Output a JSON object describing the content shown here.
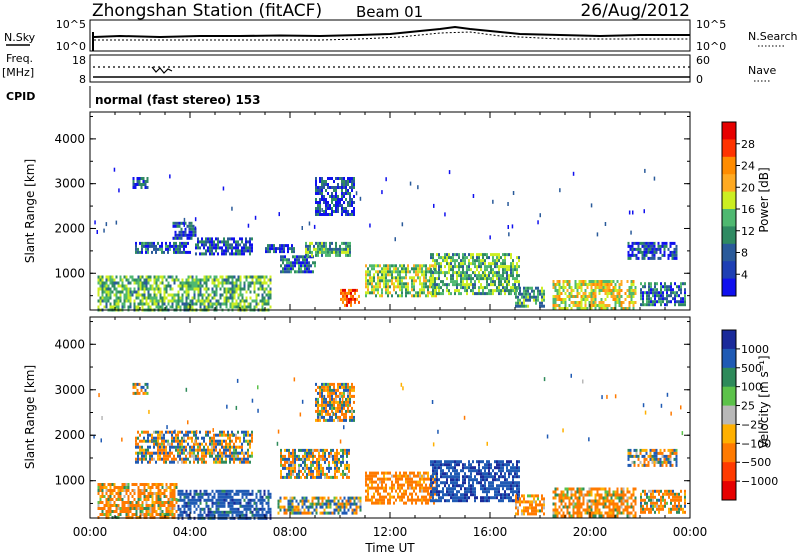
{
  "header": {
    "station": "Zhongshan Station (fitACF)",
    "beam": "Beam 01",
    "date": "26/Aug/2012"
  },
  "panels": {
    "nsky": {
      "left_label": "N.Sky",
      "right_label": "N.Search",
      "left_ticks": [
        "10^5",
        "10^0"
      ],
      "right_ticks": [
        "10^5",
        "10^0"
      ]
    },
    "freq": {
      "left_label_1": "Freq.",
      "left_label_2": "[MHz]",
      "right_label": "Nave",
      "left_ticks": [
        "18",
        "8"
      ],
      "right_ticks": [
        "60",
        "0"
      ]
    },
    "cpid": {
      "left_label": "CPID",
      "text": "normal (fast stereo) 153"
    },
    "power": {
      "colorbar_label": "Power [dB]",
      "colorbar_ticks": [
        "28",
        "24",
        "20",
        "16",
        "12",
        "8",
        "4"
      ],
      "colorbar_colors": [
        "#e60000",
        "#ff3300",
        "#ff8c00",
        "#ffaa22",
        "#ccee22",
        "#4fb870",
        "#2f8a62",
        "#2a5a9a",
        "#1e3fb4",
        "#1010ee"
      ]
    },
    "velocity": {
      "colorbar_label": "Velocity [m s⁻¹]",
      "colorbar_ticks": [
        "1000",
        "500",
        "100",
        "25",
        "−25",
        "−100",
        "−500",
        "−1000"
      ],
      "colorbar_colors": [
        "#1a2a9a",
        "#1f5ab4",
        "#2e8a5a",
        "#5cc24a",
        "#b8b8b8",
        "#ffb000",
        "#ff7a00",
        "#ff3a00",
        "#e60000"
      ]
    }
  },
  "axes": {
    "ylabel": "Slant Range [km]",
    "xlabel": "Time UT",
    "yticks": [
      "1000",
      "2000",
      "3000",
      "4000"
    ],
    "xticks": [
      "00:00",
      "04:00",
      "08:00",
      "12:00",
      "16:00",
      "20:00",
      "00:00"
    ]
  },
  "chart_data": [
    {
      "type": "heatmap",
      "title": "Power",
      "xlabel": "Time UT",
      "ylabel": "Slant Range [km]",
      "xlim": [
        0,
        24
      ],
      "ylim": [
        180,
        4600
      ],
      "colorbar": {
        "label": "Power [dB]",
        "range": [
          0,
          30
        ],
        "ticks": [
          4,
          8,
          12,
          16,
          20,
          24,
          28
        ]
      },
      "regions": [
        {
          "t0": 0.3,
          "t1": 7.2,
          "r0": 200,
          "r1": 950,
          "value": 14
        },
        {
          "t0": 1.7,
          "t1": 2.3,
          "r0": 2900,
          "r1": 3150,
          "value": 8
        },
        {
          "t0": 1.8,
          "t1": 4.0,
          "r0": 1450,
          "r1": 1700,
          "value": 9
        },
        {
          "t0": 3.3,
          "t1": 4.2,
          "r0": 1750,
          "r1": 2150,
          "value": 8
        },
        {
          "t0": 4.2,
          "t1": 6.5,
          "r0": 1400,
          "r1": 1800,
          "value": 8
        },
        {
          "t0": 7.0,
          "t1": 8.2,
          "r0": 1450,
          "r1": 1650,
          "value": 7
        },
        {
          "t0": 7.6,
          "t1": 9.0,
          "r0": 1050,
          "r1": 1400,
          "value": 9
        },
        {
          "t0": 8.6,
          "t1": 10.4,
          "r0": 1400,
          "r1": 1700,
          "value": 13
        },
        {
          "t0": 9.0,
          "t1": 10.6,
          "r0": 2300,
          "r1": 3150,
          "value": 8
        },
        {
          "t0": 10.0,
          "t1": 10.8,
          "r0": 300,
          "r1": 650,
          "value": 26
        },
        {
          "t0": 11.0,
          "t1": 13.8,
          "r0": 500,
          "r1": 1200,
          "value": 16
        },
        {
          "t0": 13.6,
          "t1": 17.2,
          "r0": 550,
          "r1": 1450,
          "value": 14
        },
        {
          "t0": 17.0,
          "t1": 18.2,
          "r0": 250,
          "r1": 700,
          "value": 12
        },
        {
          "t0": 18.5,
          "t1": 21.8,
          "r0": 200,
          "r1": 850,
          "value": 18
        },
        {
          "t0": 21.5,
          "t1": 23.5,
          "r0": 1350,
          "r1": 1700,
          "value": 8
        },
        {
          "t0": 22.0,
          "t1": 23.8,
          "r0": 300,
          "r1": 800,
          "value": 10
        }
      ]
    },
    {
      "type": "heatmap",
      "title": "Velocity",
      "xlabel": "Time UT",
      "ylabel": "Slant Range [km]",
      "xlim": [
        0,
        24
      ],
      "ylim": [
        180,
        4600
      ],
      "colorbar": {
        "label": "Velocity [m s⁻¹]",
        "range": [
          -1000,
          1000
        ],
        "ticks": [
          1000,
          500,
          100,
          25,
          -25,
          -100,
          -500,
          -1000
        ]
      },
      "regions": [
        {
          "t0": 0.3,
          "t1": 3.5,
          "r0": 200,
          "r1": 950,
          "value": -150
        },
        {
          "t0": 3.5,
          "t1": 7.2,
          "r0": 200,
          "r1": 800,
          "value": 300
        },
        {
          "t0": 1.7,
          "t1": 2.3,
          "r0": 2900,
          "r1": 3150,
          "value": 0
        },
        {
          "t0": 1.8,
          "t1": 6.5,
          "r0": 1400,
          "r1": 2100,
          "value": -20
        },
        {
          "t0": 7.6,
          "t1": 10.4,
          "r0": 1050,
          "r1": 1700,
          "value": 10
        },
        {
          "t0": 9.0,
          "t1": 10.6,
          "r0": 2300,
          "r1": 3150,
          "value": -30
        },
        {
          "t0": 7.5,
          "t1": 10.8,
          "r0": 300,
          "r1": 650,
          "value": 50
        },
        {
          "t0": 11.0,
          "t1": 13.8,
          "r0": 500,
          "r1": 1200,
          "value": -250
        },
        {
          "t0": 13.6,
          "t1": 17.2,
          "r0": 550,
          "r1": 1450,
          "value": 400
        },
        {
          "t0": 17.0,
          "t1": 18.2,
          "r0": 250,
          "r1": 700,
          "value": -200
        },
        {
          "t0": 18.5,
          "t1": 21.8,
          "r0": 200,
          "r1": 850,
          "value": -150
        },
        {
          "t0": 21.5,
          "t1": 23.5,
          "r0": 1350,
          "r1": 1700,
          "value": 0
        },
        {
          "t0": 22.0,
          "t1": 23.8,
          "r0": 300,
          "r1": 800,
          "value": -120
        }
      ]
    }
  ]
}
